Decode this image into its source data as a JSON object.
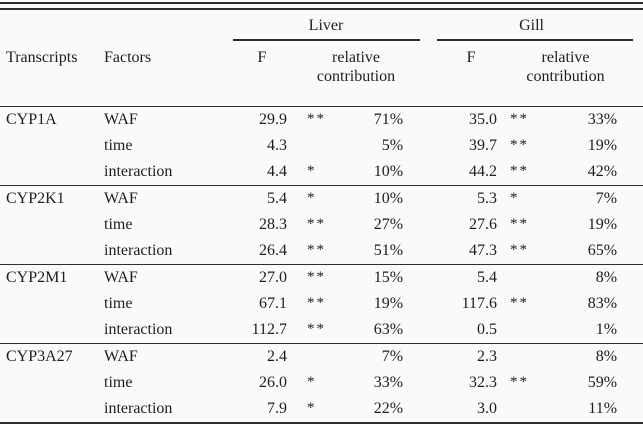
{
  "chart_data": {
    "type": "table",
    "headers": {
      "transcripts": "Transcripts",
      "factors": "Factors",
      "group1": "Liver",
      "group2": "Gill",
      "f": "F",
      "relative_contribution": "relative contribution"
    },
    "sections": [
      {
        "transcript": "CYP1A",
        "rows": [
          {
            "factor": "WAF",
            "liver": {
              "f": "29.9",
              "sig": "**",
              "rc": "71%"
            },
            "gill": {
              "f": "35.0",
              "sig": "**",
              "rc": "33%"
            }
          },
          {
            "factor": "time",
            "liver": {
              "f": "4.3",
              "sig": "",
              "rc": "5%"
            },
            "gill": {
              "f": "39.7",
              "sig": "**",
              "rc": "19%"
            }
          },
          {
            "factor": "interaction",
            "liver": {
              "f": "4.4",
              "sig": "*",
              "rc": "10%"
            },
            "gill": {
              "f": "44.2",
              "sig": "**",
              "rc": "42%"
            }
          }
        ]
      },
      {
        "transcript": "CYP2K1",
        "rows": [
          {
            "factor": "WAF",
            "liver": {
              "f": "5.4",
              "sig": "*",
              "rc": "10%"
            },
            "gill": {
              "f": "5.3",
              "sig": "*",
              "rc": "7%"
            }
          },
          {
            "factor": "time",
            "liver": {
              "f": "28.3",
              "sig": "**",
              "rc": "27%"
            },
            "gill": {
              "f": "27.6",
              "sig": "**",
              "rc": "19%"
            }
          },
          {
            "factor": "interaction",
            "liver": {
              "f": "26.4",
              "sig": "**",
              "rc": "51%"
            },
            "gill": {
              "f": "47.3",
              "sig": "**",
              "rc": "65%"
            }
          }
        ]
      },
      {
        "transcript": "CYP2M1",
        "rows": [
          {
            "factor": "WAF",
            "liver": {
              "f": "27.0",
              "sig": "**",
              "rc": "15%"
            },
            "gill": {
              "f": "5.4",
              "sig": "",
              "rc": "8%"
            }
          },
          {
            "factor": "time",
            "liver": {
              "f": "67.1",
              "sig": "**",
              "rc": "19%"
            },
            "gill": {
              "f": "117.6",
              "sig": "**",
              "rc": "83%"
            }
          },
          {
            "factor": "interaction",
            "liver": {
              "f": "112.7",
              "sig": "**",
              "rc": "63%"
            },
            "gill": {
              "f": "0.5",
              "sig": "",
              "rc": "1%"
            }
          }
        ]
      },
      {
        "transcript": "CYP3A27",
        "rows": [
          {
            "factor": "WAF",
            "liver": {
              "f": "2.4",
              "sig": "",
              "rc": "7%"
            },
            "gill": {
              "f": "2.3",
              "sig": "",
              "rc": "8%"
            }
          },
          {
            "factor": "time",
            "liver": {
              "f": "26.0",
              "sig": "*",
              "rc": "33%"
            },
            "gill": {
              "f": "32.3",
              "sig": "**",
              "rc": "59%"
            }
          },
          {
            "factor": "interaction",
            "liver": {
              "f": "7.9",
              "sig": "*",
              "rc": "22%"
            },
            "gill": {
              "f": "3.0",
              "sig": "",
              "rc": "11%"
            }
          }
        ]
      }
    ],
    "colors": {
      "text": "#1d1d1d",
      "rule": "#2e2e2e",
      "background": "#fafafa"
    }
  }
}
